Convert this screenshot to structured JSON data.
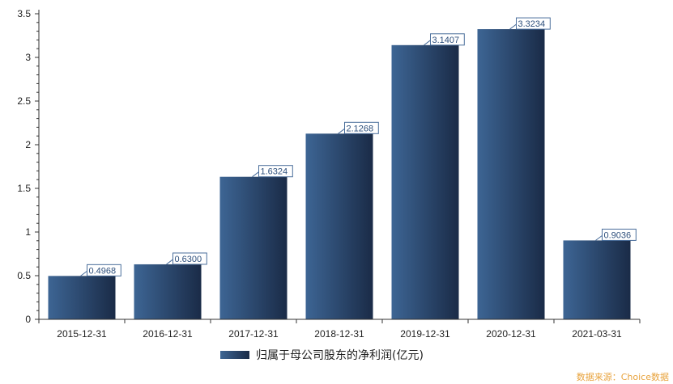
{
  "chart_data": {
    "type": "bar",
    "categories": [
      "2015-12-31",
      "2016-12-31",
      "2017-12-31",
      "2018-12-31",
      "2019-12-31",
      "2020-12-31",
      "2021-03-31"
    ],
    "series": [
      {
        "name": "归属于母公司股东的净利润(亿元)",
        "values": [
          0.4968,
          0.63,
          1.6324,
          2.1268,
          3.1407,
          3.3234,
          0.9036
        ],
        "labels": [
          "0.4968",
          "0.6300",
          "1.6324",
          "2.1268",
          "3.1407",
          "3.3234",
          "0.9036"
        ]
      }
    ],
    "yticks": [
      "0",
      "0.5",
      "1",
      "1.5",
      "2",
      "2.5",
      "3",
      "3.5"
    ],
    "ylim": [
      0,
      3.5
    ],
    "grid": false,
    "legend_position": "bottom",
    "colors": {
      "bar_light": "#3d6594",
      "bar_dark": "#1a2b47",
      "label": "#2d4f7c",
      "source": "#e8a33d"
    }
  },
  "source": "数据来源：Choice数据"
}
